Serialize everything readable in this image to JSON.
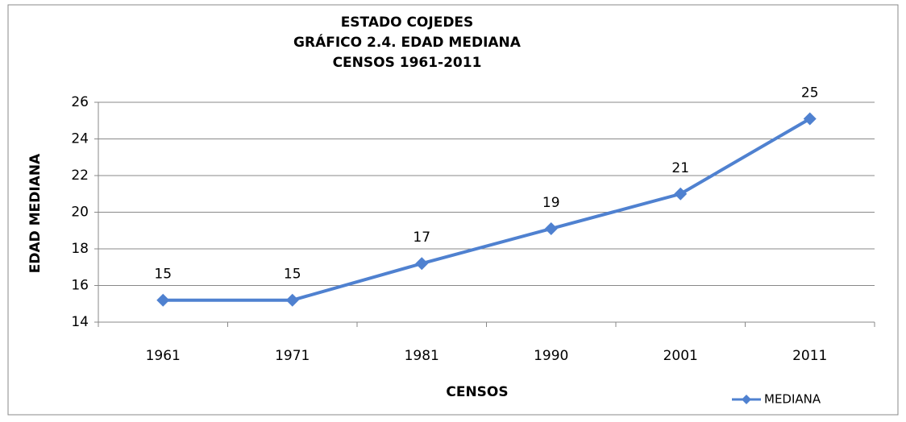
{
  "chart_data": {
    "type": "line",
    "title": [
      "ESTADO COJEDES",
      "GRÁFICO 2.4. EDAD MEDIANA",
      "CENSOS 1961-2011"
    ],
    "x_label": "CENSOS",
    "y_label": "EDAD MEDIANA",
    "categories": [
      "1961",
      "1971",
      "1981",
      "1990",
      "2001",
      "2011"
    ],
    "series": [
      {
        "name": "MEDIANA",
        "color": "#4f81d0",
        "values": [
          15.2,
          15.2,
          17.2,
          19.1,
          21.0,
          25.1
        ],
        "value_labels": [
          "15",
          "15",
          "17",
          "19",
          "21",
          "25"
        ]
      }
    ],
    "ylim": [
      14,
      26
    ],
    "yticks": [
      14,
      16,
      18,
      20,
      22,
      24,
      26
    ],
    "grid": true,
    "legend": "bottom-right"
  }
}
